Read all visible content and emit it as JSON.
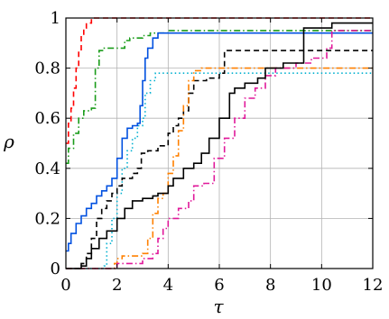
{
  "chart_data": {
    "type": "line",
    "step": true,
    "xlabel": "τ",
    "ylabel": "ρ",
    "xlim": [
      0,
      12
    ],
    "ylim": [
      0,
      1
    ],
    "xticks": [
      0,
      2,
      4,
      6,
      8,
      10,
      12
    ],
    "yticks": [
      0,
      0.2,
      0.4,
      0.6,
      0.8,
      1
    ],
    "xtick_labels": [
      "0",
      "2",
      "4",
      "6",
      "8",
      "10",
      "12"
    ],
    "ytick_labels": [
      "0",
      "0.2",
      "0.4",
      "0.6",
      "0.8",
      "1"
    ],
    "grid": true,
    "legend": "none",
    "series": [
      {
        "color": "#ff0000",
        "dash": "dashed",
        "points": [
          [
            0,
            0.5
          ],
          [
            0.1,
            0.58
          ],
          [
            0.2,
            0.64
          ],
          [
            0.3,
            0.72
          ],
          [
            0.4,
            0.8
          ],
          [
            0.5,
            0.87
          ],
          [
            0.6,
            0.93
          ],
          [
            0.7,
            0.96
          ],
          [
            0.8,
            0.98
          ],
          [
            1.0,
            1.0
          ],
          [
            12,
            1.0
          ]
        ]
      },
      {
        "color": "#1a9c1a",
        "dash": "dashdot",
        "points": [
          [
            0,
            0.42
          ],
          [
            0.1,
            0.48
          ],
          [
            0.3,
            0.54
          ],
          [
            0.5,
            0.6
          ],
          [
            0.7,
            0.63
          ],
          [
            1.0,
            0.64
          ],
          [
            1.15,
            0.8
          ],
          [
            1.3,
            0.87
          ],
          [
            1.5,
            0.88
          ],
          [
            2.0,
            0.88
          ],
          [
            2.3,
            0.91
          ],
          [
            2.5,
            0.92
          ],
          [
            3.0,
            0.93
          ],
          [
            3.3,
            0.94
          ],
          [
            4.0,
            0.95
          ],
          [
            12,
            0.95
          ]
        ]
      },
      {
        "color": "#0050e0",
        "dash": "solid",
        "points": [
          [
            0,
            0.07
          ],
          [
            0.1,
            0.1
          ],
          [
            0.2,
            0.14
          ],
          [
            0.4,
            0.18
          ],
          [
            0.6,
            0.21
          ],
          [
            0.8,
            0.24
          ],
          [
            1.0,
            0.26
          ],
          [
            1.2,
            0.29
          ],
          [
            1.4,
            0.31
          ],
          [
            1.6,
            0.33
          ],
          [
            1.8,
            0.36
          ],
          [
            2.0,
            0.44
          ],
          [
            2.2,
            0.52
          ],
          [
            2.4,
            0.56
          ],
          [
            2.6,
            0.57
          ],
          [
            2.8,
            0.58
          ],
          [
            2.9,
            0.65
          ],
          [
            3.0,
            0.75
          ],
          [
            3.1,
            0.84
          ],
          [
            3.2,
            0.88
          ],
          [
            3.4,
            0.92
          ],
          [
            3.6,
            0.94
          ],
          [
            12,
            0.94
          ]
        ]
      },
      {
        "color": "#00b0d0",
        "dash": "dotted",
        "points": [
          [
            0,
            0
          ],
          [
            1.5,
            0.01
          ],
          [
            1.6,
            0.1
          ],
          [
            1.8,
            0.2
          ],
          [
            2.0,
            0.3
          ],
          [
            2.2,
            0.4
          ],
          [
            2.4,
            0.47
          ],
          [
            2.6,
            0.52
          ],
          [
            2.8,
            0.57
          ],
          [
            3.0,
            0.6
          ],
          [
            3.1,
            0.7
          ],
          [
            3.3,
            0.75
          ],
          [
            3.5,
            0.78
          ],
          [
            12,
            0.78
          ]
        ]
      },
      {
        "color": "#000000",
        "dash": "dashed",
        "points": [
          [
            0,
            0
          ],
          [
            0.6,
            0.02
          ],
          [
            0.8,
            0.06
          ],
          [
            1.0,
            0.12
          ],
          [
            1.2,
            0.2
          ],
          [
            1.4,
            0.24
          ],
          [
            1.6,
            0.27
          ],
          [
            1.8,
            0.3
          ],
          [
            2.0,
            0.33
          ],
          [
            2.2,
            0.36
          ],
          [
            2.6,
            0.38
          ],
          [
            2.8,
            0.4
          ],
          [
            2.95,
            0.46
          ],
          [
            3.2,
            0.47
          ],
          [
            3.6,
            0.49
          ],
          [
            4.0,
            0.54
          ],
          [
            4.2,
            0.57
          ],
          [
            4.4,
            0.6
          ],
          [
            4.6,
            0.63
          ],
          [
            4.8,
            0.7
          ],
          [
            5.0,
            0.75
          ],
          [
            5.5,
            0.76
          ],
          [
            6.0,
            0.78
          ],
          [
            6.2,
            0.87
          ],
          [
            12,
            0.87
          ]
        ]
      },
      {
        "color": "#ff8000",
        "dash": "dashdot",
        "points": [
          [
            0,
            0
          ],
          [
            1.5,
            0
          ],
          [
            1.9,
            0.02
          ],
          [
            2.0,
            0.04
          ],
          [
            2.2,
            0.05
          ],
          [
            3.0,
            0.06
          ],
          [
            3.2,
            0.12
          ],
          [
            3.4,
            0.22
          ],
          [
            3.6,
            0.28
          ],
          [
            3.8,
            0.3
          ],
          [
            4.0,
            0.38
          ],
          [
            4.2,
            0.45
          ],
          [
            4.4,
            0.55
          ],
          [
            4.6,
            0.65
          ],
          [
            4.8,
            0.75
          ],
          [
            5.0,
            0.79
          ],
          [
            5.3,
            0.8
          ],
          [
            12,
            0.8
          ]
        ]
      },
      {
        "color": "#e0189a",
        "dash": "dashdot",
        "points": [
          [
            0,
            0
          ],
          [
            1.8,
            0
          ],
          [
            2.0,
            0.02
          ],
          [
            3.0,
            0.04
          ],
          [
            3.4,
            0.06
          ],
          [
            3.6,
            0.12
          ],
          [
            3.8,
            0.16
          ],
          [
            4.0,
            0.2
          ],
          [
            4.4,
            0.24
          ],
          [
            4.8,
            0.27
          ],
          [
            5.0,
            0.33
          ],
          [
            5.4,
            0.34
          ],
          [
            5.8,
            0.44
          ],
          [
            6.2,
            0.52
          ],
          [
            6.6,
            0.6
          ],
          [
            7.0,
            0.68
          ],
          [
            7.4,
            0.72
          ],
          [
            7.8,
            0.77
          ],
          [
            8.2,
            0.8
          ],
          [
            9.0,
            0.82
          ],
          [
            9.6,
            0.84
          ],
          [
            10.2,
            0.88
          ],
          [
            10.4,
            0.95
          ],
          [
            12,
            0.95
          ]
        ]
      },
      {
        "color": "#000000",
        "dash": "solid",
        "points": [
          [
            0,
            0
          ],
          [
            0.6,
            0.01
          ],
          [
            0.8,
            0.04
          ],
          [
            1.0,
            0.08
          ],
          [
            1.3,
            0.12
          ],
          [
            1.6,
            0.15
          ],
          [
            2.0,
            0.2
          ],
          [
            2.3,
            0.24
          ],
          [
            2.6,
            0.27
          ],
          [
            3.0,
            0.28
          ],
          [
            3.4,
            0.29
          ],
          [
            3.6,
            0.3
          ],
          [
            4.0,
            0.33
          ],
          [
            4.2,
            0.36
          ],
          [
            4.6,
            0.4
          ],
          [
            5.0,
            0.42
          ],
          [
            5.3,
            0.46
          ],
          [
            5.6,
            0.52
          ],
          [
            6.0,
            0.6
          ],
          [
            6.4,
            0.7
          ],
          [
            6.6,
            0.72
          ],
          [
            7.0,
            0.74
          ],
          [
            7.5,
            0.76
          ],
          [
            7.8,
            0.8
          ],
          [
            8.5,
            0.82
          ],
          [
            9.0,
            0.82
          ],
          [
            9.3,
            0.96
          ],
          [
            10.4,
            0.98
          ],
          [
            12,
            0.98
          ]
        ]
      }
    ]
  }
}
